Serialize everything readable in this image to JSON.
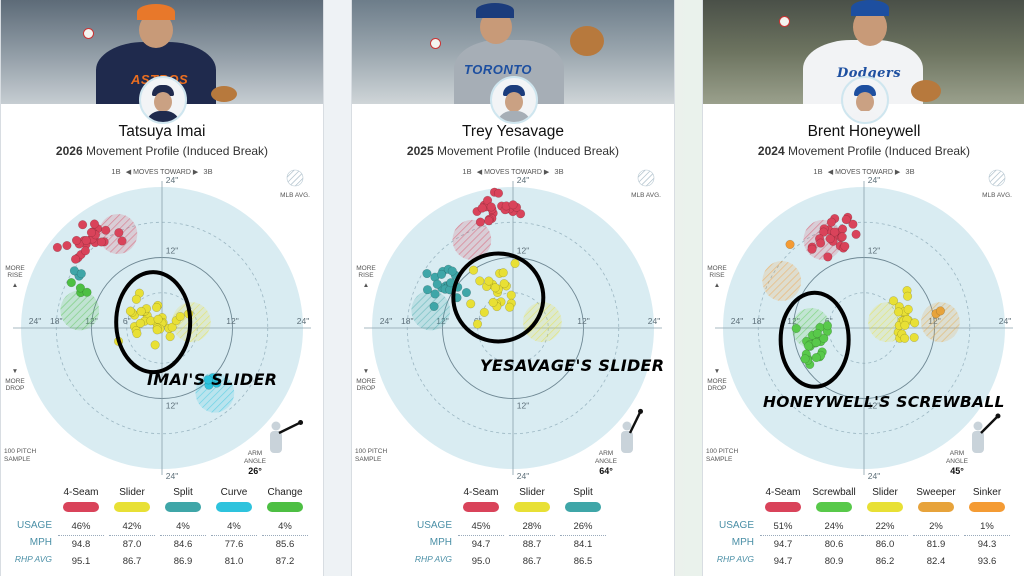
{
  "axis_labels": {
    "moves_toward_left": "1B",
    "moves_toward_mid": "MOVES TOWARD",
    "moves_toward_right": "3B",
    "mlb_avg": "MLB AVG.",
    "more_rise": "MORE RISE",
    "more_drop": "MORE DROP",
    "pitch_sample": "100 PITCH SAMPLE",
    "arm_angle": "ARM ANGLE",
    "row_usage": "USAGE",
    "row_mph": "MPH",
    "row_rhp": "RHP AVG",
    "tick_vertical": [
      "24\"",
      "12\"",
      "12\"",
      "24\""
    ],
    "tick_horizontal": [
      "24\"",
      "18\"",
      "12\"",
      "6\"",
      "12\"",
      "24\""
    ]
  },
  "colors": {
    "4-Seam": "#d9435a",
    "Slider": "#e8e035",
    "Split": "#3fa6a8",
    "Curve": "#2ec3dd",
    "Change": "#4dbf43",
    "Screwball": "#58c94a",
    "Sweeper": "#e7a33b",
    "Sinker": "#f49b34"
  },
  "panels": [
    {
      "name": "Tatsuya Imai",
      "year": "2026",
      "subtitle": "Movement Profile (Induced Break)",
      "arm_angle": "26°",
      "overlay": "IMAI'S SLIDER",
      "jersey": "ASTROS",
      "pitches": [
        {
          "name": "4-Seam",
          "usage": "46%",
          "mph": "94.8",
          "rhp": "95.1"
        },
        {
          "name": "Slider",
          "usage": "42%",
          "mph": "87.0",
          "rhp": "86.7"
        },
        {
          "name": "Split",
          "usage": "4%",
          "mph": "84.6",
          "rhp": "86.9"
        },
        {
          "name": "Curve",
          "usage": "4%",
          "mph": "77.6",
          "rhp": "81.0"
        },
        {
          "name": "Change",
          "usage": "4%",
          "mph": "85.6",
          "rhp": "87.2"
        }
      ]
    },
    {
      "name": "Trey Yesavage",
      "year": "2025",
      "subtitle": "Movement Profile (Induced Break)",
      "arm_angle": "64°",
      "overlay": "YESAVAGE'S SLIDER",
      "jersey": "TORONTO",
      "pitches": [
        {
          "name": "4-Seam",
          "usage": "45%",
          "mph": "94.7",
          "rhp": "95.0"
        },
        {
          "name": "Slider",
          "usage": "28%",
          "mph": "88.7",
          "rhp": "86.7"
        },
        {
          "name": "Split",
          "usage": "26%",
          "mph": "84.1",
          "rhp": "86.5"
        }
      ]
    },
    {
      "name": "Brent Honeywell",
      "year": "2024",
      "subtitle": "Movement Profile (Induced Break)",
      "arm_angle": "45°",
      "overlay": "HONEYWELL'S SCREWBALL",
      "jersey": "Dodgers",
      "pitches": [
        {
          "name": "4-Seam",
          "usage": "51%",
          "mph": "94.7",
          "rhp": "94.7"
        },
        {
          "name": "Screwball",
          "usage": "24%",
          "mph": "80.6",
          "rhp": "80.9"
        },
        {
          "name": "Slider",
          "usage": "22%",
          "mph": "86.0",
          "rhp": "86.2"
        },
        {
          "name": "Sweeper",
          "usage": "2%",
          "mph": "81.9",
          "rhp": "82.4"
        },
        {
          "name": "Sinker",
          "usage": "1%",
          "mph": "94.3",
          "rhp": "93.6"
        }
      ]
    }
  ],
  "chart_data": [
    {
      "type": "scatter",
      "title": "Tatsuya Imai",
      "subtitle": "2026 Movement Profile (Induced Break)",
      "xlim": [
        -24,
        24
      ],
      "ylim": [
        -24,
        24
      ],
      "series": [
        {
          "name": "4-Seam",
          "center": [
            -12,
            14.5
          ],
          "spread": [
            3.2,
            2.6
          ],
          "n": 26
        },
        {
          "name": "Slider",
          "center": [
            -1.5,
            1.5
          ],
          "spread": [
            4.2,
            3.0
          ],
          "n": 34
        },
        {
          "name": "Split",
          "center": [
            -14,
            8.5
          ],
          "spread": [
            1.2,
            1.0
          ],
          "n": 4
        },
        {
          "name": "Curve",
          "center": [
            8.5,
            -9.5
          ],
          "spread": [
            1.0,
            0.8
          ],
          "n": 4
        },
        {
          "name": "Change",
          "center": [
            -14,
            6.5
          ],
          "spread": [
            1.2,
            0.8
          ],
          "n": 4
        }
      ],
      "mlb_avg": [
        {
          "pitch": "4-Seam",
          "center": [
            -7.5,
            16
          ]
        },
        {
          "pitch": "Slider",
          "center": [
            5,
            1
          ]
        },
        {
          "pitch": "Change",
          "center": [
            -14,
            3
          ]
        },
        {
          "pitch": "Curve",
          "center": [
            9,
            -11
          ]
        }
      ]
    },
    {
      "type": "scatter",
      "title": "Trey Yesavage",
      "subtitle": "2025 Movement Profile (Induced Break)",
      "xlim": [
        -24,
        24
      ],
      "ylim": [
        -24,
        24
      ],
      "series": [
        {
          "name": "4-Seam",
          "center": [
            -3,
            20.5
          ],
          "spread": [
            3.0,
            1.8
          ],
          "n": 24
        },
        {
          "name": "Slider",
          "center": [
            -3,
            5
          ],
          "spread": [
            2.8,
            4.0
          ],
          "n": 24
        },
        {
          "name": "Split",
          "center": [
            -11.5,
            7.5
          ],
          "spread": [
            2.3,
            2.4
          ],
          "n": 22
        }
      ],
      "mlb_avg": [
        {
          "pitch": "4-Seam",
          "center": [
            -7,
            15
          ]
        },
        {
          "pitch": "Slider",
          "center": [
            5,
            1
          ]
        },
        {
          "pitch": "Split",
          "center": [
            -14,
            3
          ]
        }
      ]
    },
    {
      "type": "scatter",
      "title": "Brent Honeywell",
      "subtitle": "2024 Movement Profile (Induced Break)",
      "xlim": [
        -24,
        24
      ],
      "ylim": [
        -24,
        24
      ],
      "series": [
        {
          "name": "4-Seam",
          "center": [
            -5.5,
            15.5
          ],
          "spread": [
            3.0,
            2.0
          ],
          "n": 26
        },
        {
          "name": "Screwball",
          "center": [
            -8.5,
            -2.5
          ],
          "spread": [
            2.6,
            3.0
          ],
          "n": 24
        },
        {
          "name": "Slider",
          "center": [
            6.5,
            1.5
          ],
          "spread": [
            1.6,
            2.8
          ],
          "n": 20
        },
        {
          "name": "Sweeper",
          "center": [
            12.5,
            4
          ],
          "spread": [
            1.2,
            1.6
          ],
          "n": 2
        },
        {
          "name": "Sinker",
          "center": [
            -13,
            14
          ],
          "spread": [
            0.5,
            0.5
          ],
          "n": 1
        }
      ],
      "mlb_avg": [
        {
          "pitch": "4-Seam",
          "center": [
            -7,
            15
          ]
        },
        {
          "pitch": "Slider",
          "center": [
            4,
            1
          ]
        },
        {
          "pitch": "Sweeper",
          "center": [
            13,
            1
          ]
        },
        {
          "pitch": "Sinker",
          "center": [
            -14,
            8
          ]
        },
        {
          "pitch": "Screwball",
          "center": [
            -9,
            0
          ]
        }
      ]
    }
  ]
}
